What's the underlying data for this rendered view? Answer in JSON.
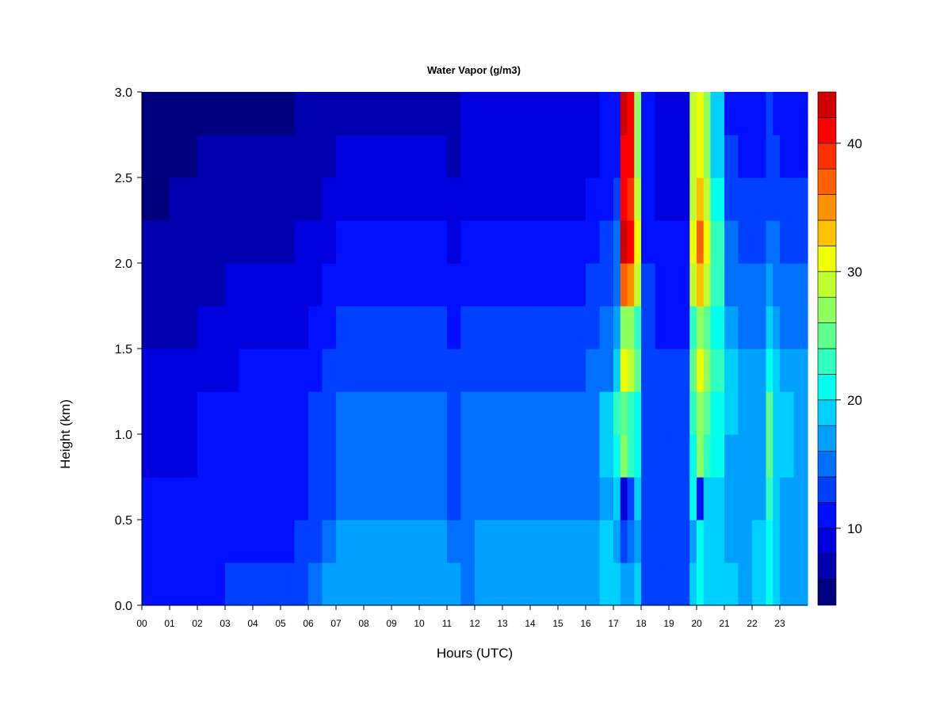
{
  "chart_data": {
    "type": "heatmap",
    "title": "Water Vapor (g/m3)",
    "xlabel": "Hours (UTC)",
    "ylabel": "Height (km)",
    "x_tick_labels": [
      "00",
      "01",
      "02",
      "03",
      "04",
      "05",
      "06",
      "07",
      "08",
      "09",
      "10",
      "11",
      "12",
      "13",
      "14",
      "15",
      "16",
      "17",
      "18",
      "19",
      "20",
      "21",
      "22",
      "23"
    ],
    "xlim": [
      0,
      24
    ],
    "y_ticks": [
      0.0,
      0.5,
      1.0,
      1.5,
      2.0,
      2.5,
      3.0
    ],
    "y_tick_labels": [
      "0.0",
      "0.5",
      "1.0",
      "1.5",
      "2.0",
      "2.5",
      "3.0"
    ],
    "ylim": [
      0.0,
      3.0
    ],
    "colorbar": {
      "levels": [
        4,
        6,
        8,
        10,
        12,
        14,
        16,
        18,
        20,
        22,
        24,
        26,
        28,
        30,
        32,
        34,
        36,
        38,
        40,
        42,
        44
      ],
      "colors": [
        "#00007F",
        "#0000AF",
        "#0000DF",
        "#0010FF",
        "#0040FF",
        "#0070FF",
        "#00A0FF",
        "#00D0FF",
        "#00FFEF",
        "#2FFFBF",
        "#5FFF8F",
        "#8FFF5F",
        "#BFFF2F",
        "#EFFF00",
        "#FFC000",
        "#FF9000",
        "#FF6000",
        "#FF3000",
        "#FF0000",
        "#CF0000",
        "#7F0000"
      ],
      "tick_values": [
        10,
        20,
        30,
        40
      ],
      "tick_labels": [
        "10",
        "20",
        "30",
        "40"
      ]
    },
    "column_hours": [
      0,
      0.5,
      1,
      1.5,
      2,
      2.5,
      3,
      3.5,
      4,
      4.5,
      5,
      5.5,
      6,
      6.5,
      7,
      7.5,
      8,
      8.5,
      9,
      9.5,
      10,
      10.5,
      11,
      11.5,
      12,
      12.5,
      13,
      13.5,
      14,
      14.5,
      15,
      15.5,
      16,
      16.5,
      17,
      17.25,
      17.5,
      17.75,
      18,
      18.5,
      19,
      19.5,
      19.75,
      20,
      20.25,
      20.5,
      21,
      21.5,
      22,
      22.5,
      22.75,
      23,
      23.5
    ],
    "row_heights_km": [
      0.0,
      0.25,
      0.5,
      0.75,
      1.0,
      1.25,
      1.5,
      1.75,
      2.0,
      2.25,
      2.5,
      2.75
    ],
    "values_note_g_m3": "rows = height bins starting at row_heights_km, columns = time bins starting at column_hours",
    "values": [
      [
        10,
        10,
        10,
        10,
        11,
        11,
        12,
        12,
        12,
        12,
        12,
        13,
        14,
        16,
        16,
        16,
        16,
        16,
        16,
        16,
        16,
        16,
        16,
        14,
        17,
        17,
        17,
        17,
        17,
        17,
        17,
        17,
        16,
        18,
        18,
        17,
        17,
        18,
        13,
        12,
        12,
        12,
        19,
        20,
        19,
        19,
        18,
        17,
        18,
        20,
        18,
        17,
        17
      ],
      [
        10,
        10,
        10,
        10,
        10,
        10,
        11,
        11,
        11,
        11,
        11,
        12,
        13,
        14,
        16,
        16,
        16,
        16,
        16,
        16,
        16,
        16,
        15,
        14,
        17,
        17,
        17,
        17,
        17,
        17,
        17,
        17,
        16,
        18,
        17,
        12,
        14,
        16,
        13,
        12,
        12,
        12,
        16,
        20,
        19,
        18,
        17,
        17,
        18,
        21,
        18,
        17,
        17
      ],
      [
        10,
        10,
        10,
        10,
        10,
        10,
        10,
        10,
        10,
        10,
        10,
        11,
        12,
        13,
        14,
        14,
        14,
        14,
        14,
        14,
        14,
        14,
        13,
        14,
        15,
        15,
        15,
        15,
        15,
        15,
        14,
        15,
        15,
        17,
        19,
        9,
        12,
        18,
        13,
        12,
        12,
        12,
        20,
        10,
        18,
        18,
        16,
        16,
        17,
        22,
        19,
        17,
        17
      ],
      [
        9,
        9,
        9,
        9,
        10,
        10,
        10,
        10,
        10,
        10,
        10,
        11,
        12,
        12,
        14,
        14,
        14,
        14,
        14,
        14,
        14,
        14,
        13,
        14,
        15,
        15,
        15,
        15,
        15,
        15,
        14,
        15,
        15,
        18,
        21,
        26,
        22,
        20,
        13,
        12,
        12,
        12,
        20,
        26,
        22,
        20,
        17,
        16,
        17,
        25,
        19,
        18,
        17
      ],
      [
        9,
        9,
        9,
        9,
        10,
        10,
        10,
        10,
        10,
        10,
        10,
        11,
        12,
        12,
        14,
        14,
        14,
        14,
        14,
        14,
        14,
        14,
        13,
        14,
        15,
        15,
        15,
        15,
        15,
        15,
        14,
        15,
        15,
        18,
        22,
        24,
        22,
        20,
        13,
        12,
        12,
        12,
        22,
        27,
        24,
        21,
        18,
        16,
        17,
        24,
        19,
        18,
        17
      ],
      [
        8,
        8,
        8,
        8,
        9,
        9,
        9,
        10,
        10,
        10,
        10,
        10,
        11,
        12,
        13,
        13,
        13,
        13,
        13,
        13,
        13,
        13,
        12,
        13,
        13,
        13,
        13,
        13,
        13,
        13,
        13,
        13,
        14,
        15,
        18,
        30,
        28,
        24,
        13,
        12,
        12,
        12,
        24,
        30,
        26,
        22,
        18,
        16,
        16,
        20,
        18,
        16,
        16
      ],
      [
        7,
        7,
        7,
        7,
        8,
        8,
        8,
        9,
        9,
        9,
        9,
        9,
        10,
        11,
        12,
        12,
        12,
        12,
        12,
        12,
        12,
        12,
        11,
        12,
        12,
        12,
        12,
        12,
        12,
        12,
        12,
        12,
        13,
        14,
        16,
        26,
        26,
        22,
        12,
        11,
        11,
        11,
        22,
        26,
        24,
        20,
        16,
        15,
        15,
        18,
        16,
        15,
        15
      ],
      [
        7,
        7,
        7,
        7,
        7,
        7,
        8,
        8,
        8,
        8,
        8,
        8,
        9,
        10,
        11,
        11,
        11,
        11,
        11,
        11,
        11,
        11,
        10,
        11,
        11,
        11,
        11,
        11,
        11,
        11,
        11,
        11,
        12,
        13,
        15,
        37,
        35,
        28,
        12,
        11,
        11,
        11,
        28,
        32,
        28,
        22,
        15,
        14,
        14,
        16,
        15,
        14,
        14
      ],
      [
        6,
        6,
        6,
        6,
        7,
        7,
        7,
        7,
        7,
        7,
        7,
        8,
        8,
        9,
        10,
        10,
        10,
        10,
        10,
        10,
        10,
        10,
        9,
        10,
        10,
        10,
        10,
        10,
        10,
        10,
        10,
        10,
        11,
        12,
        14,
        42,
        40,
        30,
        11,
        10,
        10,
        10,
        30,
        36,
        30,
        22,
        14,
        13,
        13,
        15,
        14,
        13,
        13
      ],
      [
        5,
        5,
        6,
        6,
        6,
        6,
        6,
        6,
        6,
        6,
        7,
        7,
        7,
        8,
        9,
        9,
        9,
        9,
        9,
        9,
        9,
        9,
        8,
        9,
        9,
        9,
        9,
        9,
        9,
        9,
        9,
        9,
        10,
        11,
        12,
        40,
        39,
        28,
        10,
        9,
        9,
        9,
        28,
        32,
        28,
        20,
        13,
        12,
        12,
        13,
        13,
        12,
        12
      ],
      [
        5,
        5,
        5,
        5,
        6,
        6,
        6,
        6,
        6,
        6,
        6,
        6,
        7,
        7,
        8,
        8,
        8,
        8,
        8,
        8,
        8,
        8,
        7,
        8,
        8,
        8,
        8,
        8,
        8,
        8,
        8,
        8,
        9,
        10,
        11,
        40,
        40,
        27,
        10,
        9,
        9,
        9,
        28,
        30,
        27,
        19,
        12,
        11,
        11,
        12,
        12,
        11,
        11
      ],
      [
        4,
        4,
        5,
        5,
        5,
        5,
        5,
        5,
        5,
        5,
        5,
        6,
        6,
        7,
        7,
        7,
        7,
        7,
        7,
        7,
        7,
        7,
        7,
        8,
        8,
        8,
        8,
        8,
        8,
        8,
        8,
        8,
        9,
        10,
        11,
        42,
        40,
        26,
        10,
        9,
        9,
        9,
        28,
        30,
        26,
        18,
        11,
        10,
        10,
        12,
        11,
        10,
        10
      ]
    ]
  }
}
